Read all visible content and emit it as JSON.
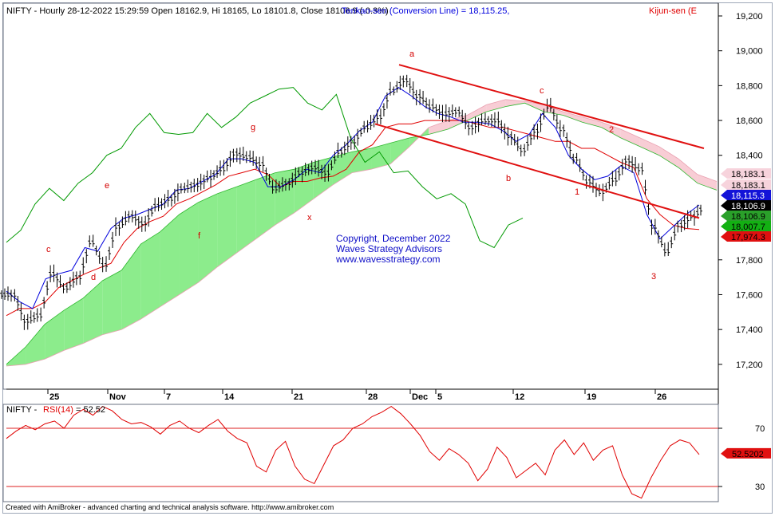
{
  "header": {
    "symbol": "NIFTY",
    "ohlc_text": "NIFTY - Hourly 28-12-2022 15:29:59 Open 18162.9, Hi 18165, Lo 18101.8, Close 18106.9 (-0.3%)",
    "tenkan_text": "Tenkan-sen (Conversion Line) = 18,115.25,",
    "kijun_text": "Kijun-sen (E"
  },
  "rsi_header": {
    "prefix": "NIFTY - ",
    "label": "RSI(14)",
    "value_text": "= 52.52"
  },
  "copyright": {
    "line1": "Copyright, December 2022",
    "line2": "Waves Strategy Advisors",
    "line3": "www.wavesstrategy.com"
  },
  "footer": "Created with AmiBroker - advanced charting and technical analysis software. http://www.amibroker.com",
  "colors": {
    "price": "#000000",
    "tenkan": "#0000dd",
    "kijun": "#e00000",
    "chikou": "#009900",
    "cloud_bull": "#7fea7f",
    "cloud_bear": "#f7c8d0",
    "channel": "#e01010",
    "rsi": "#e00000"
  },
  "chart_data": [
    {
      "type": "line",
      "title": "NIFTY - Hourly (Ichimoku)",
      "y_ticks": [
        "19,200",
        "19,000",
        "18,800",
        "18,600",
        "18,400",
        "17,800",
        "17,600",
        "17,400",
        "17,200"
      ],
      "ylim": [
        17100,
        19280
      ],
      "x_ticks": [
        "25",
        "Nov",
        "7",
        "14",
        "21",
        "28",
        "Dec",
        "5",
        "12",
        "19",
        "26"
      ],
      "series": [
        {
          "name": "NIFTY",
          "style": "ohlc-bars",
          "values": [
            17600,
            17450,
            17480,
            17720,
            17640,
            17700,
            17900,
            17770,
            17990,
            18050,
            18010,
            18110,
            18150,
            18210,
            18230,
            18270,
            18320,
            18410,
            18390,
            18350,
            18210,
            18240,
            18300,
            18330,
            18300,
            18420,
            18480,
            18560,
            18620,
            18770,
            18830,
            18740,
            18680,
            18640,
            18650,
            18560,
            18600,
            18600,
            18510,
            18430,
            18540,
            18680,
            18550,
            18380,
            18250,
            18190,
            18260,
            18370,
            18320,
            17990,
            17850,
            18000,
            18050,
            18107
          ]
        },
        {
          "name": "Tenkan-sen (Conversion Line)",
          "values": [
            17620,
            17560,
            17520,
            17690,
            17720,
            17740,
            17870,
            17850,
            17980,
            18040,
            18060,
            18090,
            18120,
            18200,
            18210,
            18250,
            18290,
            18380,
            18380,
            18360,
            18220,
            18220,
            18260,
            18320,
            18300,
            18400,
            18460,
            18540,
            18590,
            18740,
            18790,
            18740,
            18680,
            18640,
            18620,
            18590,
            18590,
            18580,
            18540,
            18480,
            18520,
            18640,
            18560,
            18400,
            18320,
            18260,
            18280,
            18340,
            18300,
            18060,
            17920,
            17990,
            18060,
            18115
          ]
        },
        {
          "name": "Kijun-sen",
          "values": [
            17480,
            17520,
            17520,
            17560,
            17640,
            17680,
            17720,
            17750,
            17780,
            17900,
            17980,
            18020,
            18050,
            18120,
            18150,
            18190,
            18230,
            18280,
            18300,
            18320,
            18290,
            18220,
            18250,
            18250,
            18270,
            18280,
            18320,
            18420,
            18460,
            18560,
            18580,
            18580,
            18600,
            18600,
            18600,
            18600,
            18580,
            18560,
            18560,
            18540,
            18520,
            18500,
            18480,
            18480,
            18440,
            18440,
            18400,
            18360,
            18330,
            18150,
            18060,
            18000,
            17980,
            17974
          ]
        },
        {
          "name": "Chikou",
          "values": [
            17900,
            17970,
            18120,
            18210,
            18140,
            18240,
            18300,
            18400,
            18440,
            18560,
            18640,
            18530,
            18520,
            18530,
            18640,
            18560,
            18620,
            18700,
            18740,
            18780,
            18790,
            18700,
            18660,
            18750,
            18500,
            18360,
            18420,
            18300,
            18310,
            18220,
            18150,
            18180,
            18120,
            17910,
            17870,
            18000,
            18040
          ]
        },
        {
          "name": "Senkou Span A",
          "values": [
            17200,
            17300,
            17430,
            17510,
            17580,
            17680,
            17740,
            17890,
            17960,
            18060,
            18130,
            18180,
            18220,
            18260,
            18300,
            18320,
            18360,
            18390,
            18420,
            18440,
            18470,
            18500,
            18520,
            18550,
            18600,
            18650,
            18680,
            18700,
            18650,
            18630,
            18590,
            18560,
            18500,
            18450,
            18400,
            18330,
            18240,
            18200
          ]
        },
        {
          "name": "Senkou Span B",
          "values": [
            17190,
            17200,
            17230,
            17280,
            17320,
            17370,
            17400,
            17460,
            17530,
            17600,
            17670,
            17760,
            17840,
            17920,
            18000,
            18070,
            18150,
            18230,
            18300,
            18320,
            18350,
            18450,
            18560,
            18600,
            18630,
            18690,
            18720,
            18710,
            18690,
            18650,
            18620,
            18590,
            18550,
            18500,
            18450,
            18380,
            18290,
            18250
          ]
        }
      ],
      "last_value_tags": [
        "18,183.1",
        "18,183.1",
        "18,115.3",
        "18,106.9",
        "18,106.9",
        "18,007.7",
        "17,974.3"
      ],
      "wave_labels": [
        "a",
        "b",
        "c",
        "1",
        "2",
        "3",
        "c",
        "d",
        "e",
        "f",
        "g",
        "x"
      ]
    },
    {
      "type": "line",
      "title": "RSI(14)",
      "y_ticks": [
        "70",
        "30"
      ],
      "ylim": [
        14,
        90
      ],
      "reference_lines": [
        70,
        30
      ],
      "current_tag": "52.5202",
      "series": [
        {
          "name": "RSI(14)",
          "values": [
            63,
            68,
            72,
            69,
            73,
            75,
            70,
            79,
            83,
            79,
            85,
            82,
            76,
            73,
            74,
            71,
            66,
            72,
            75,
            70,
            67,
            72,
            76,
            68,
            63,
            60,
            44,
            40,
            55,
            61,
            44,
            35,
            32,
            45,
            58,
            62,
            70,
            73,
            78,
            81,
            85,
            80,
            73,
            65,
            54,
            48,
            56,
            52,
            46,
            34,
            42,
            57,
            50,
            36,
            41,
            46,
            38,
            55,
            62,
            52,
            60,
            48,
            55,
            58,
            38,
            25,
            22,
            36,
            48,
            58,
            62,
            60,
            52
          ]
        }
      ]
    }
  ]
}
